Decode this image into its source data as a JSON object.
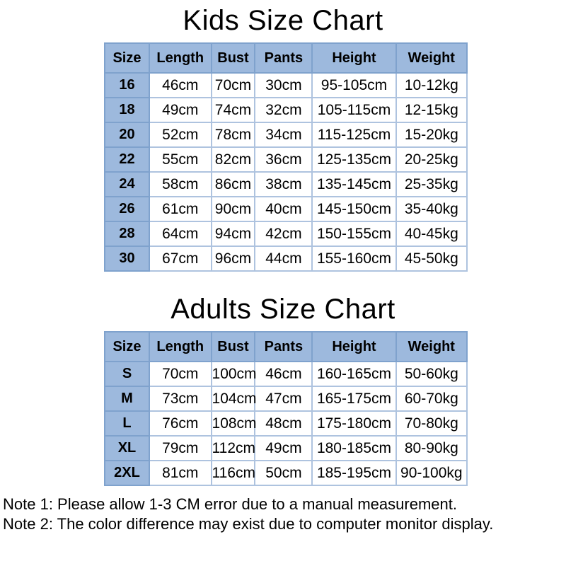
{
  "colors": {
    "page_bg": "#ffffff",
    "header_fill": "#9db9dd",
    "cell_fill": "#ffffff",
    "border_outer": "#7fa2cd",
    "border_inner": "#aec3df",
    "text": "#000000"
  },
  "kids_chart": {
    "title": "Kids Size Chart",
    "columns": [
      "Size",
      "Length",
      "Bust",
      "Pants",
      "Height",
      "Weight"
    ],
    "rows": [
      [
        "16",
        "46cm",
        "70cm",
        "30cm",
        "95-105cm",
        "10-12kg"
      ],
      [
        "18",
        "49cm",
        "74cm",
        "32cm",
        "105-115cm",
        "12-15kg"
      ],
      [
        "20",
        "52cm",
        "78cm",
        "34cm",
        "115-125cm",
        "15-20kg"
      ],
      [
        "22",
        "55cm",
        "82cm",
        "36cm",
        "125-135cm",
        "20-25kg"
      ],
      [
        "24",
        "58cm",
        "86cm",
        "38cm",
        "135-145cm",
        "25-35kg"
      ],
      [
        "26",
        "61cm",
        "90cm",
        "40cm",
        "145-150cm",
        "35-40kg"
      ],
      [
        "28",
        "64cm",
        "94cm",
        "42cm",
        "150-155cm",
        "40-45kg"
      ],
      [
        "30",
        "67cm",
        "96cm",
        "44cm",
        "155-160cm",
        "45-50kg"
      ]
    ]
  },
  "adults_chart": {
    "title": "Adults Size Chart",
    "columns": [
      "Size",
      "Length",
      "Bust",
      "Pants",
      "Height",
      "Weight"
    ],
    "rows": [
      [
        "S",
        "70cm",
        "100cm",
        "46cm",
        "160-165cm",
        "50-60kg"
      ],
      [
        "M",
        "73cm",
        "104cm",
        "47cm",
        "165-175cm",
        "60-70kg"
      ],
      [
        "L",
        "76cm",
        "108cm",
        "48cm",
        "175-180cm",
        "70-80kg"
      ],
      [
        "XL",
        "79cm",
        "112cm",
        "49cm",
        "180-185cm",
        "80-90kg"
      ],
      [
        "2XL",
        "81cm",
        "116cm",
        "50cm",
        "185-195cm",
        "90-100kg"
      ]
    ]
  },
  "notes": [
    "Note 1: Please allow 1-3 CM error due to a manual measurement.",
    "Note 2: The color difference may exist due to computer monitor display."
  ]
}
